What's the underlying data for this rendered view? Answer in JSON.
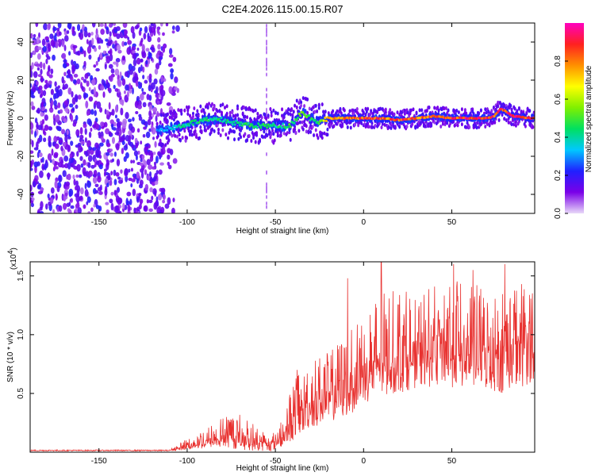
{
  "chart_data": [
    {
      "type": "heatmap",
      "title": "C2E4.2026.115.00.15.R07",
      "xlabel": "Height of straight line (km)",
      "ylabel": "Frequency (Hz)",
      "xlim": [
        -189,
        97
      ],
      "ylim": [
        -50,
        50
      ],
      "x_ticks": [
        -150,
        -100,
        -50,
        0,
        50
      ],
      "y_ticks": [
        40,
        20,
        0,
        -20,
        -40
      ],
      "colorbar": {
        "label": "Normalized spectral amplitude",
        "range": [
          0,
          1
        ],
        "ticks": [
          "0.0",
          "0.2",
          "0.4",
          "0.6",
          "0.8"
        ],
        "colors": [
          "#e8d8f8",
          "#7a00e8",
          "#2020ff",
          "#00c8ff",
          "#00e060",
          "#80f000",
          "#ffff00",
          "#ff9000",
          "#ff2020",
          "#ff00c0"
        ]
      },
      "noise_region_x": [
        -189,
        -113
      ],
      "ridge": {
        "x": [
          -117,
          -108,
          -100,
          -90,
          -80,
          -70,
          -60,
          -50,
          -42,
          -35,
          -30,
          -25,
          -20,
          -10,
          0,
          10,
          20,
          30,
          40,
          50,
          60,
          70,
          74,
          78,
          85,
          97
        ],
        "freq": [
          -6,
          -5,
          -3,
          -1,
          -1,
          -3,
          -4,
          -4,
          -4,
          3,
          0,
          -2,
          0,
          0,
          0,
          0,
          -1,
          0,
          1,
          0,
          0,
          0,
          1,
          5,
          1,
          0
        ],
        "amplitude": [
          0.3,
          0.4,
          0.45,
          0.5,
          0.45,
          0.45,
          0.5,
          0.45,
          0.5,
          0.55,
          0.5,
          0.5,
          0.8,
          0.85,
          0.9,
          0.9,
          0.9,
          0.9,
          0.92,
          0.92,
          0.95,
          0.95,
          0.95,
          0.9,
          0.95,
          0.95
        ]
      }
    },
    {
      "type": "line",
      "xlabel": "Height of straight line (km)",
      "ylabel": "SNR (10 * v/v)",
      "y_multiplier": "(x10",
      "y_multiplier_exp": "4",
      "xlim": [
        -189,
        97
      ],
      "ylim": [
        0,
        1.62
      ],
      "x_ticks": [
        -150,
        -100,
        -50,
        0,
        50
      ],
      "y_ticks": [
        "0.5",
        "1.0",
        "1.5"
      ],
      "series": [
        {
          "name": "SNR",
          "color": "#e8312f",
          "envelope_x": [
            -189,
            -110,
            -100,
            -90,
            -80,
            -70,
            -60,
            -52,
            -45,
            -38,
            -30,
            -20,
            -10,
            0,
            10,
            20,
            30,
            40,
            50,
            60,
            70,
            80,
            90,
            97
          ],
          "envelope_low": [
            0.01,
            0.01,
            0.02,
            0.03,
            0.04,
            0.02,
            0.01,
            0.01,
            0.05,
            0.12,
            0.2,
            0.25,
            0.3,
            0.4,
            0.45,
            0.5,
            0.55,
            0.55,
            0.55,
            0.55,
            0.5,
            0.5,
            0.55,
            0.6
          ],
          "envelope_high": [
            0.02,
            0.02,
            0.12,
            0.2,
            0.3,
            0.35,
            0.22,
            0.15,
            0.35,
            0.7,
            0.8,
            0.85,
            1.0,
            1.2,
            1.35,
            1.4,
            1.35,
            1.45,
            1.55,
            1.5,
            1.35,
            1.4,
            1.5,
            1.45
          ],
          "peaks": [
            {
              "x": -9,
              "y": 1.48
            },
            {
              "x": 10,
              "y": 1.62
            },
            {
              "x": 51,
              "y": 1.6
            },
            {
              "x": 62,
              "y": 1.55
            },
            {
              "x": 80,
              "y": 1.6
            }
          ]
        }
      ]
    }
  ]
}
